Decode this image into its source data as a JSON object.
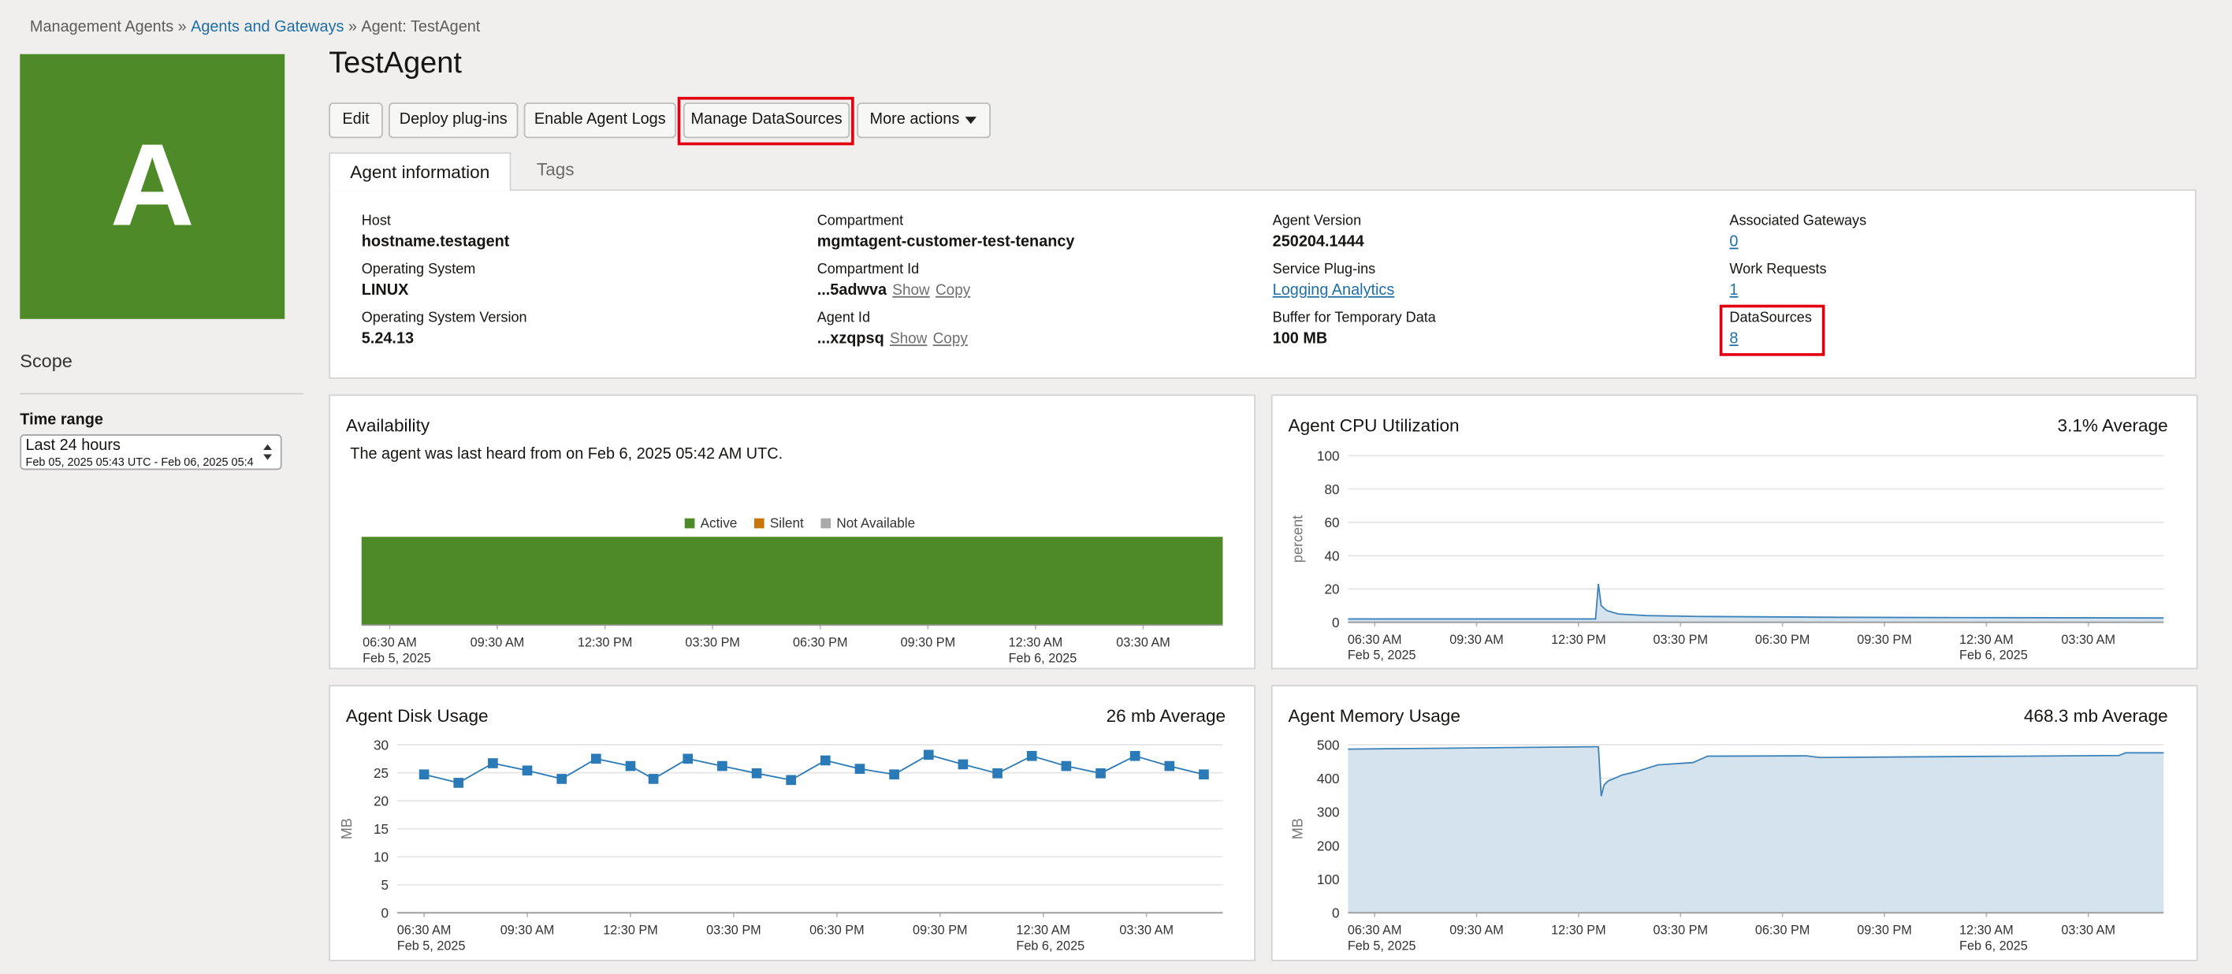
{
  "breadcrumb": {
    "items": [
      "Management Agents",
      "Agents and Gateways",
      "Agent: TestAgent"
    ],
    "separator": "»"
  },
  "avatar": "A",
  "title": "TestAgent",
  "sidebar": {
    "scope": "Scope",
    "time_range_label": "Time range",
    "time_range_value": "Last 24 hours",
    "time_range_detail": "Feb 05, 2025 05:43 UTC - Feb 06, 2025 05:4"
  },
  "actions": [
    "Edit",
    "Deploy plug-ins",
    "Enable Agent Logs",
    "Manage DataSources",
    "More actions"
  ],
  "tabs": [
    "Agent information",
    "Tags"
  ],
  "info": [
    {
      "label": "Host",
      "value": "hostname.testagent"
    },
    {
      "label": "Operating System",
      "value": "LINUX"
    },
    {
      "label": "Operating System Version",
      "value": "5.24.13"
    },
    {
      "label": "Compartment",
      "value": "mgmtagent-customer-test-tenancy"
    },
    {
      "label": "Compartment Id",
      "value": "...5adwva",
      "links": [
        "Show",
        "Copy"
      ]
    },
    {
      "label": "Agent Id",
      "value": "...xzqpsq",
      "links": [
        "Show",
        "Copy"
      ]
    },
    {
      "label": "Agent Version",
      "value": "250204.1444"
    },
    {
      "label": "Service Plug-ins",
      "value": "Logging Analytics",
      "link": true
    },
    {
      "label": "Buffer for Temporary Data",
      "value": "100 MB"
    },
    {
      "label": "Associated Gateways",
      "value": 0,
      "link": true
    },
    {
      "label": "Work Requests",
      "value": 1,
      "link": true
    },
    {
      "label": "DataSources",
      "value": 8,
      "link": true
    }
  ],
  "chart_data": [
    {
      "type": "timeline",
      "title": "Availability",
      "note": "The agent was last heard from on Feb 6, 2025 05:42 AM UTC.",
      "xlim": [
        "2025-02-05 05:43",
        "2025-02-06 05:43"
      ],
      "xticks": [
        {
          "value": "2025-02-05 06:30",
          "label": [
            "06:30 AM",
            "Feb 5, 2025"
          ]
        },
        {
          "value": "2025-02-05 09:30",
          "label": "09:30 AM"
        },
        {
          "value": "2025-02-05 12:30",
          "label": "12:30 PM"
        },
        {
          "value": "2025-02-05 15:30",
          "label": "03:30 PM"
        },
        {
          "value": "2025-02-05 18:30",
          "label": "06:30 PM"
        },
        {
          "value": "2025-02-05 21:30",
          "label": "09:30 PM"
        },
        {
          "value": "2025-02-06 00:30",
          "label": [
            "12:30 AM",
            "Feb 6, 2025"
          ]
        },
        {
          "value": "2025-02-06 03:30",
          "label": "03:30 AM"
        }
      ],
      "series": [
        {
          "name": "Active",
          "color": "#4e8a27",
          "periods": [
            [
              "2025-02-05 05:43",
              "2025-02-06 05:43"
            ]
          ]
        },
        {
          "name": "Silent",
          "color": "#c8760a",
          "periods": []
        },
        {
          "name": "Not Available",
          "color": "#a9a9a9",
          "periods": []
        }
      ]
    },
    {
      "type": "area",
      "title": "Agent CPU Utilization",
      "summary": "3.1% Average",
      "ylabel": "percent",
      "ylim": [
        0,
        100
      ],
      "yticks": [
        0,
        20,
        40,
        60,
        80,
        100
      ],
      "grid": true,
      "xlim": [
        "2025-02-05 05:43",
        "2025-02-06 05:43"
      ],
      "xticks": [
        {
          "value": "2025-02-05 06:30",
          "label": [
            "06:30 AM",
            "Feb 5, 2025"
          ]
        },
        {
          "value": "2025-02-05 09:30",
          "label": "09:30 AM"
        },
        {
          "value": "2025-02-05 12:30",
          "label": "12:30 PM"
        },
        {
          "value": "2025-02-05 15:30",
          "label": "03:30 PM"
        },
        {
          "value": "2025-02-05 18:30",
          "label": "06:30 PM"
        },
        {
          "value": "2025-02-05 21:30",
          "label": "09:30 PM"
        },
        {
          "value": "2025-02-06 00:30",
          "label": [
            "12:30 AM",
            "Feb 6, 2025"
          ]
        },
        {
          "value": "2025-02-06 03:30",
          "label": "03:30 AM"
        }
      ],
      "series": [
        {
          "color": "#3d82b8",
          "fill": "#d5e3ef",
          "x": [
            "2025-02-05 05:43",
            "2025-02-05 13:00",
            "2025-02-05 13:05",
            "2025-02-05 13:10",
            "2025-02-05 13:20",
            "2025-02-05 13:40",
            "2025-02-05 14:30",
            "2025-02-05 16:00",
            "2025-02-05 20:00",
            "2025-02-06 00:00",
            "2025-02-06 05:43"
          ],
          "values": [
            2,
            2,
            23,
            10,
            7,
            5,
            4,
            3.5,
            3,
            2.8,
            2.6
          ]
        }
      ]
    },
    {
      "type": "line",
      "title": "Agent Disk Usage",
      "summary": "26 mb Average",
      "ylabel": "MB",
      "ylim": [
        0,
        30
      ],
      "yticks": [
        0,
        5,
        10,
        15,
        20,
        25,
        30
      ],
      "grid": true,
      "markers": true,
      "xlim": [
        "2025-02-05 05:43",
        "2025-02-06 05:43"
      ],
      "xticks": [
        {
          "value": "2025-02-05 06:30",
          "label": [
            "06:30 AM",
            "Feb 5, 2025"
          ]
        },
        {
          "value": "2025-02-05 09:30",
          "label": "09:30 AM"
        },
        {
          "value": "2025-02-05 12:30",
          "label": "12:30 PM"
        },
        {
          "value": "2025-02-05 15:30",
          "label": "03:30 PM"
        },
        {
          "value": "2025-02-05 18:30",
          "label": "06:30 PM"
        },
        {
          "value": "2025-02-05 21:30",
          "label": "09:30 PM"
        },
        {
          "value": "2025-02-06 00:30",
          "label": [
            "12:30 AM",
            "Feb 6, 2025"
          ]
        },
        {
          "value": "2025-02-06 03:30",
          "label": "03:30 AM"
        }
      ],
      "series": [
        {
          "color": "#2a7ab8",
          "x": [
            "2025-02-05 06:30",
            "2025-02-05 07:30",
            "2025-02-05 08:30",
            "2025-02-05 09:30",
            "2025-02-05 10:30",
            "2025-02-05 11:30",
            "2025-02-05 12:30",
            "2025-02-05 13:10",
            "2025-02-05 14:10",
            "2025-02-05 15:10",
            "2025-02-05 16:10",
            "2025-02-05 17:10",
            "2025-02-05 18:10",
            "2025-02-05 19:10",
            "2025-02-05 20:10",
            "2025-02-05 21:10",
            "2025-02-05 22:10",
            "2025-02-05 23:10",
            "2025-02-06 00:10",
            "2025-02-06 01:10",
            "2025-02-06 02:10",
            "2025-02-06 03:10",
            "2025-02-06 04:10",
            "2025-02-06 05:10"
          ],
          "values": [
            24.7,
            23.2,
            26.7,
            25.4,
            23.9,
            27.5,
            26.2,
            23.9,
            27.5,
            26.2,
            24.9,
            23.7,
            27.2,
            25.7,
            24.7,
            28.2,
            26.5,
            24.9,
            28,
            26.2,
            24.9,
            28,
            26.2,
            24.7
          ]
        }
      ]
    },
    {
      "type": "area",
      "title": "Agent Memory Usage",
      "summary": "468.3 mb Average",
      "ylabel": "MB",
      "ylim": [
        0,
        500
      ],
      "yticks": [
        0,
        100,
        200,
        300,
        400,
        500
      ],
      "grid": true,
      "xlim": [
        "2025-02-05 05:43",
        "2025-02-06 05:43"
      ],
      "xticks": [
        {
          "value": "2025-02-05 06:30",
          "label": [
            "06:30 AM",
            "Feb 5, 2025"
          ]
        },
        {
          "value": "2025-02-05 09:30",
          "label": "09:30 AM"
        },
        {
          "value": "2025-02-05 12:30",
          "label": "12:30 PM"
        },
        {
          "value": "2025-02-05 15:30",
          "label": "03:30 PM"
        },
        {
          "value": "2025-02-05 18:30",
          "label": "06:30 PM"
        },
        {
          "value": "2025-02-05 21:30",
          "label": "09:30 PM"
        },
        {
          "value": "2025-02-06 00:30",
          "label": [
            "12:30 AM",
            "Feb 6, 2025"
          ]
        },
        {
          "value": "2025-02-06 03:30",
          "label": "03:30 AM"
        }
      ],
      "series": [
        {
          "color": "#3d82b8",
          "fill": "#d5e3ef",
          "x": [
            "2025-02-05 05:43",
            "2025-02-05 12:58",
            "2025-02-05 13:05",
            "2025-02-05 13:10",
            "2025-02-05 13:15",
            "2025-02-05 13:22",
            "2025-02-05 13:47",
            "2025-02-05 14:12",
            "2025-02-05 14:50",
            "2025-02-05 15:52",
            "2025-02-05 16:18",
            "2025-02-05 19:12",
            "2025-02-05 19:36",
            "2025-02-06 04:24",
            "2025-02-06 04:36",
            "2025-02-06 05:43"
          ],
          "values": [
            487,
            494,
            494,
            347,
            380,
            392,
            410,
            420,
            440,
            447,
            466,
            467,
            462,
            468,
            476,
            476
          ]
        }
      ]
    }
  ]
}
